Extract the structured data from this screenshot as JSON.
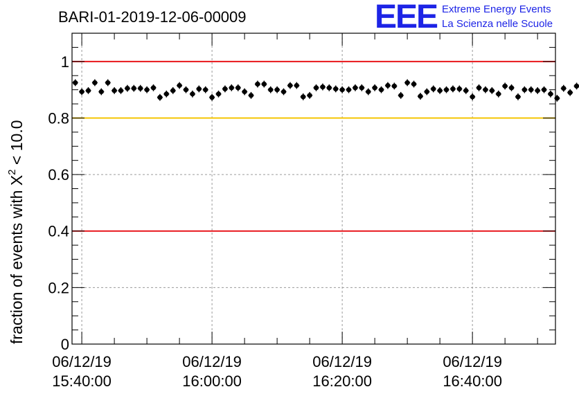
{
  "header": {
    "run_title": "BARI-01-2019-12-06-00009",
    "logo": "EEE",
    "logo_line1": "Extreme Energy Events",
    "logo_line2": "La Scienza nelle Scuole",
    "logo_color": "#1d24e6"
  },
  "chart_data": {
    "type": "scatter",
    "ylabel_prefix": "fraction of events with ",
    "ylabel_symbol": "X",
    "ylabel_sup": "2",
    "ylabel_suffix": " < 10.0",
    "ylim": [
      0,
      1.1
    ],
    "xlim": [
      "06/12/19 15:38:30",
      "06/12/19 16:52:45"
    ],
    "x_tick_labels": [
      {
        "date": "06/12/19",
        "time": "15:40:00"
      },
      {
        "date": "06/12/19",
        "time": "16:00:00"
      },
      {
        "date": "06/12/19",
        "time": "16:20:00"
      },
      {
        "date": "06/12/19",
        "time": "16:40:00"
      }
    ],
    "y_tick_labels": [
      "0",
      "0.2",
      "0.4",
      "0.6",
      "0.8",
      "1"
    ],
    "grid": true,
    "reference_lines": [
      {
        "y": 1.0,
        "color": "#e8141a"
      },
      {
        "y": 0.8,
        "color": "#f5c400"
      },
      {
        "y": 0.4,
        "color": "#e8141a"
      }
    ],
    "marker_color": "#000000",
    "x_start": "06/12/19 15:39:00",
    "x_step_minutes": 1,
    "y_error": 0.012,
    "values": [
      0.925,
      0.893,
      0.897,
      0.925,
      0.893,
      0.925,
      0.897,
      0.897,
      0.905,
      0.905,
      0.905,
      0.9,
      0.907,
      0.873,
      0.885,
      0.897,
      0.915,
      0.9,
      0.885,
      0.903,
      0.9,
      0.873,
      0.885,
      0.903,
      0.907,
      0.907,
      0.893,
      0.88,
      0.92,
      0.92,
      0.9,
      0.9,
      0.893,
      0.915,
      0.915,
      0.875,
      0.88,
      0.907,
      0.91,
      0.907,
      0.903,
      0.9,
      0.9,
      0.907,
      0.907,
      0.893,
      0.907,
      0.9,
      0.915,
      0.913,
      0.88,
      0.925,
      0.92,
      0.877,
      0.893,
      0.903,
      0.897,
      0.9,
      0.903,
      0.903,
      0.897,
      0.875,
      0.907,
      0.9,
      0.897,
      0.885,
      0.913,
      0.907,
      0.875,
      0.9,
      0.9,
      0.897,
      0.9,
      0.885,
      0.87,
      0.905,
      0.89,
      0.913
    ]
  }
}
